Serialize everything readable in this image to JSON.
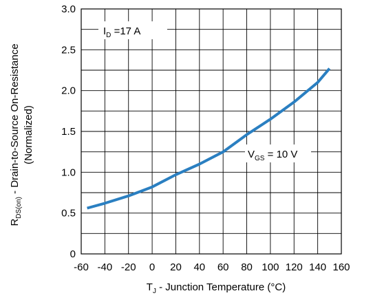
{
  "chart_data": {
    "type": "line",
    "x_ticks": [
      "-60",
      "-40",
      "-20",
      "0",
      "20",
      "40",
      "60",
      "80",
      "100",
      "120",
      "140",
      "160"
    ],
    "y_ticks": [
      "0",
      "0.5",
      "1.0",
      "1.5",
      "2.0",
      "2.5",
      "3.0"
    ],
    "xlim": [
      -60,
      160
    ],
    "ylim": [
      0,
      3
    ],
    "x_grid_step": 20,
    "y_grid_step": 0.25,
    "grid": true,
    "xlabel": {
      "main": "T",
      "sub": "J",
      "rest": " - Junction Temperature (°C)"
    },
    "ylabel": {
      "line1_main": "R",
      "line1_sub": "DS(on)",
      "line1_rest": " - Drain-to-Source On-Resistance",
      "line2": "(Normalized)"
    },
    "annotations": {
      "id": {
        "main": "I",
        "sub": "D",
        "rest": " =17 A"
      },
      "vgs": {
        "main": "V",
        "sub": "GS",
        "rest": " = 10 V"
      }
    },
    "line_color": "#2a7fc1",
    "series": [
      {
        "x": [
          -55,
          -40,
          -20,
          0,
          20,
          40,
          60,
          80,
          100,
          120,
          140,
          150
        ],
        "values": [
          0.56,
          0.62,
          0.71,
          0.82,
          0.97,
          1.1,
          1.25,
          1.46,
          1.65,
          1.86,
          2.1,
          2.27
        ]
      }
    ]
  }
}
